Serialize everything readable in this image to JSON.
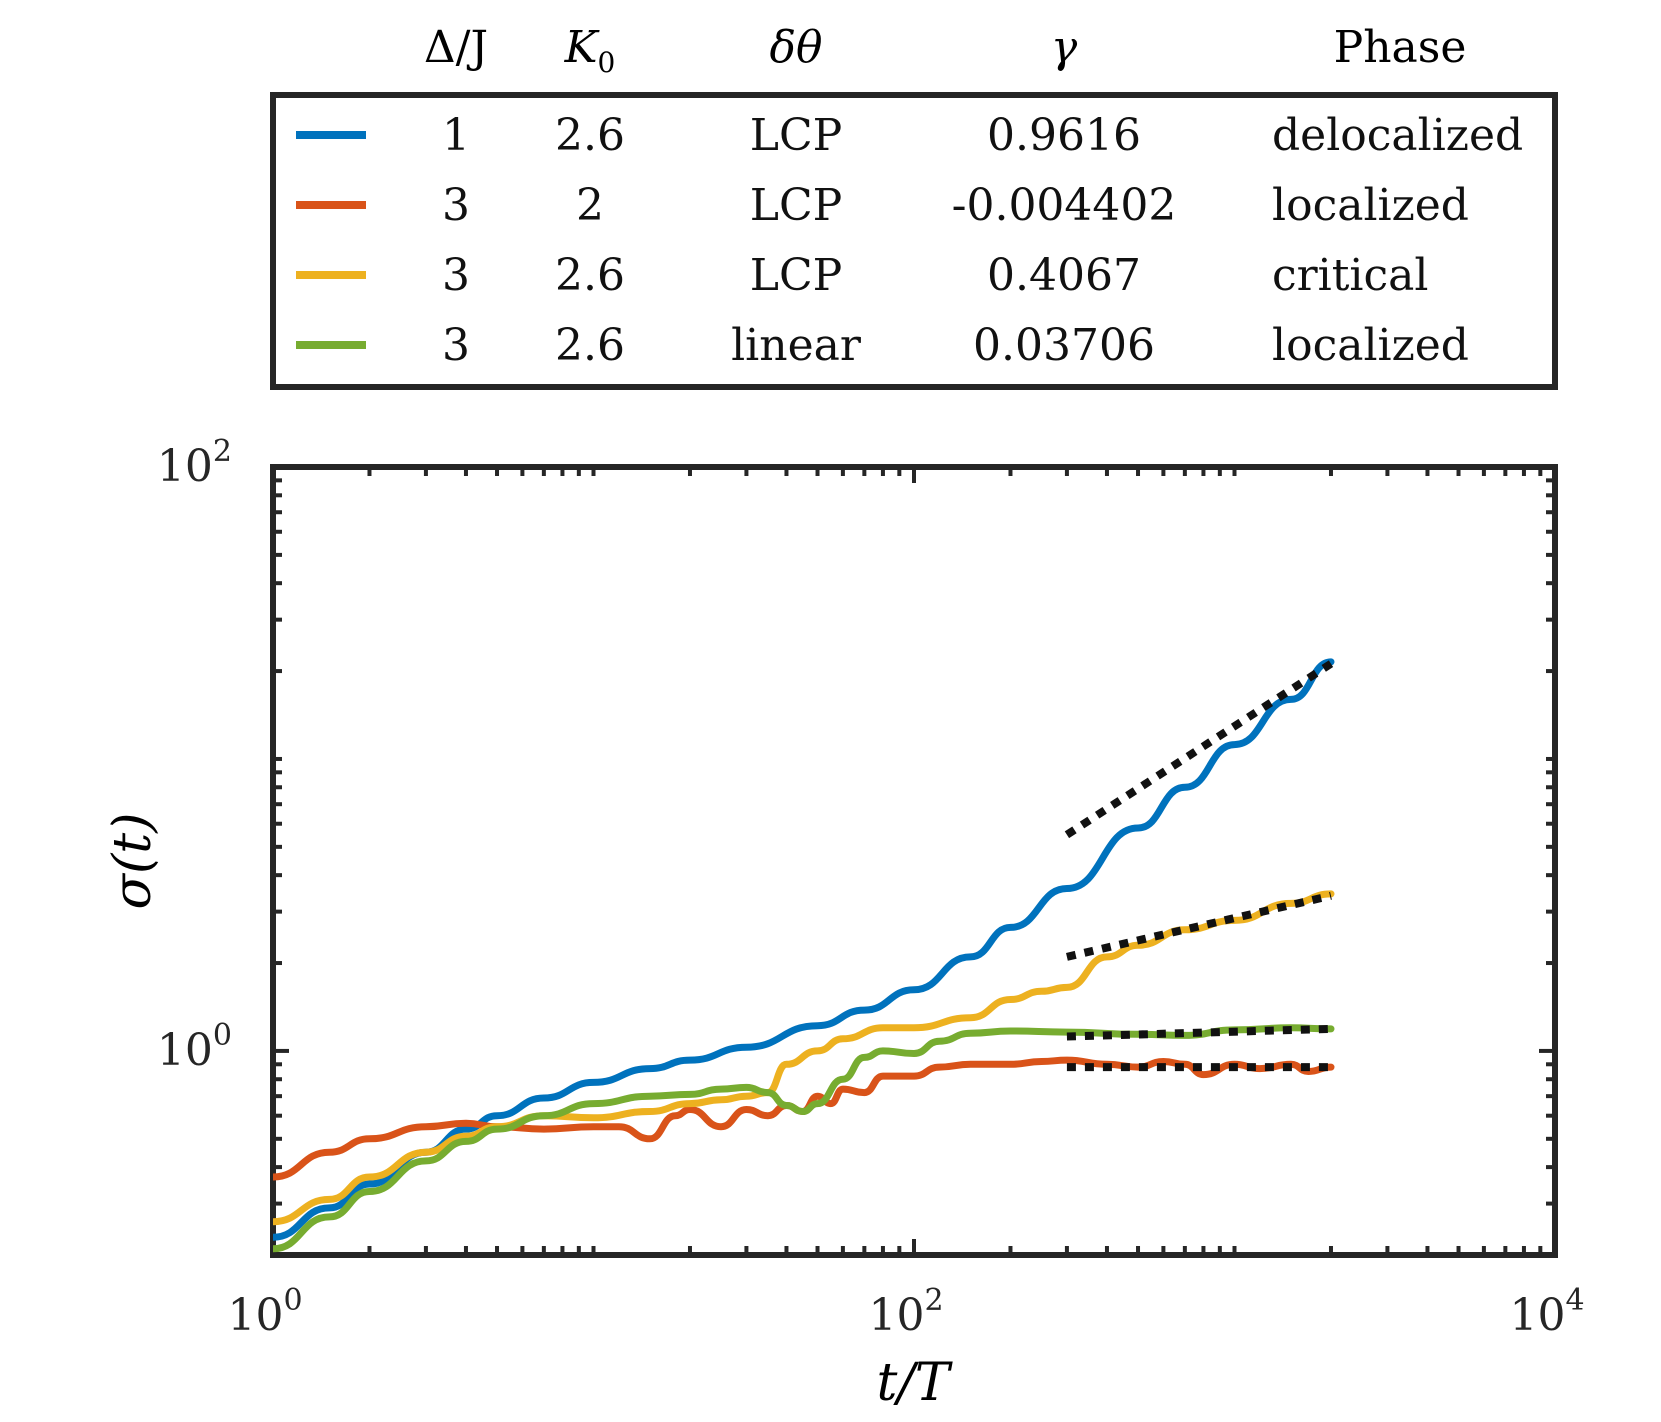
{
  "legend": {
    "headers": {
      "delta": "Δ/J",
      "k0": "K",
      "k0_sub": "0",
      "dtheta": "δθ",
      "gamma": "γ",
      "phase": "Phase"
    },
    "rows": [
      {
        "color": "#0072BD",
        "delta": "1",
        "k0": "2.6",
        "dtheta": "LCP",
        "gamma": "0.9616",
        "phase": "delocalized"
      },
      {
        "color": "#D95319",
        "delta": "3",
        "k0": "2",
        "dtheta": "LCP",
        "gamma": "-0.004402",
        "phase": "localized"
      },
      {
        "color": "#EDB120",
        "delta": "3",
        "k0": "2.6",
        "dtheta": "LCP",
        "gamma": "0.4067",
        "phase": "critical"
      },
      {
        "color": "#77AC30",
        "delta": "3",
        "k0": "2.6",
        "dtheta": "linear",
        "gamma": "0.03706",
        "phase": "localized"
      }
    ]
  },
  "chart_data": {
    "type": "line",
    "xscale": "log",
    "yscale": "log",
    "xlim": [
      1,
      10000
    ],
    "ylim": [
      0.2,
      100
    ],
    "xlabel": "t/T",
    "ylabel": "σ(t)",
    "xticks": [
      {
        "base": "10",
        "exp": "0"
      },
      {
        "base": "10",
        "exp": "2"
      },
      {
        "base": "10",
        "exp": "4"
      }
    ],
    "yticks": [
      {
        "base": "10",
        "exp": "0"
      },
      {
        "base": "10",
        "exp": "2"
      }
    ],
    "series": [
      {
        "name": "Δ/J=1, K0=2.6, LCP",
        "color": "#0072BD",
        "x": [
          1,
          1.5,
          2,
          3,
          4,
          5,
          7,
          10,
          15,
          20,
          30,
          50,
          70,
          100,
          150,
          200,
          300,
          500,
          700,
          1000,
          1500,
          2000
        ],
        "y": [
          0.23,
          0.29,
          0.35,
          0.45,
          0.54,
          0.6,
          0.69,
          0.78,
          0.87,
          0.93,
          1.03,
          1.22,
          1.38,
          1.62,
          2.1,
          2.65,
          3.6,
          5.8,
          8.0,
          11.2,
          16.0,
          21.5
        ]
      },
      {
        "name": "Δ/J=3, K0=2, LCP",
        "color": "#D95319",
        "x": [
          1,
          1.5,
          2,
          3,
          4,
          5,
          7,
          10,
          12,
          15,
          18,
          20,
          25,
          30,
          35,
          40,
          45,
          50,
          55,
          60,
          70,
          80,
          100,
          120,
          150,
          200,
          250,
          300,
          400,
          500,
          600,
          700,
          800,
          1000,
          1200,
          1500,
          1700,
          2000
        ],
        "y": [
          0.37,
          0.45,
          0.5,
          0.55,
          0.565,
          0.55,
          0.54,
          0.55,
          0.55,
          0.5,
          0.6,
          0.63,
          0.55,
          0.63,
          0.6,
          0.65,
          0.62,
          0.7,
          0.66,
          0.74,
          0.72,
          0.82,
          0.82,
          0.88,
          0.9,
          0.9,
          0.92,
          0.93,
          0.9,
          0.88,
          0.92,
          0.9,
          0.83,
          0.9,
          0.87,
          0.9,
          0.85,
          0.88
        ]
      },
      {
        "name": "Δ/J=3, K0=2.6, LCP",
        "color": "#EDB120",
        "x": [
          1,
          1.5,
          2,
          3,
          4,
          5,
          7,
          10,
          15,
          20,
          25,
          30,
          35,
          40,
          50,
          60,
          80,
          100,
          150,
          200,
          250,
          300,
          400,
          500,
          700,
          1000,
          1500,
          2000
        ],
        "y": [
          0.26,
          0.31,
          0.37,
          0.45,
          0.51,
          0.55,
          0.6,
          0.59,
          0.62,
          0.66,
          0.68,
          0.7,
          0.72,
          0.9,
          1.0,
          1.1,
          1.2,
          1.2,
          1.3,
          1.5,
          1.6,
          1.65,
          2.1,
          2.3,
          2.6,
          2.8,
          3.2,
          3.45
        ]
      },
      {
        "name": "Δ/J=3, K0=2.6, linear",
        "color": "#77AC30",
        "x": [
          1,
          1.5,
          2,
          3,
          4,
          5,
          7,
          10,
          15,
          20,
          25,
          30,
          35,
          40,
          45,
          50,
          60,
          70,
          80,
          100,
          120,
          150,
          200,
          300,
          500,
          700,
          1000,
          1500,
          2000
        ],
        "y": [
          0.21,
          0.27,
          0.33,
          0.42,
          0.49,
          0.54,
          0.6,
          0.66,
          0.7,
          0.71,
          0.74,
          0.75,
          0.72,
          0.65,
          0.62,
          0.66,
          0.8,
          0.95,
          1.0,
          0.98,
          1.08,
          1.15,
          1.17,
          1.16,
          1.14,
          1.13,
          1.18,
          1.2,
          1.19
        ]
      }
    ],
    "fits": [
      {
        "color": "#111111",
        "x": [
          300,
          2000
        ],
        "y": [
          5.5,
          21.2
        ]
      },
      {
        "color": "#111111",
        "x": [
          300,
          2000
        ],
        "y": [
          2.1,
          3.4
        ]
      },
      {
        "color": "#111111",
        "x": [
          300,
          2000
        ],
        "y": [
          1.12,
          1.19
        ]
      },
      {
        "color": "#111111",
        "x": [
          300,
          2000
        ],
        "y": [
          0.88,
          0.88
        ]
      }
    ]
  }
}
